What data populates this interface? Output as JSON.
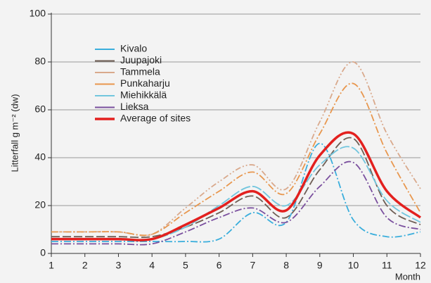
{
  "chart_data": {
    "type": "line",
    "y_label": "Litterfall g m⁻² (dw)",
    "x_label": "Month",
    "x": [
      1,
      2,
      3,
      4,
      5,
      6,
      7,
      8,
      9,
      10,
      11,
      12
    ],
    "xlim": [
      1,
      12
    ],
    "xticks": [
      1,
      2,
      3,
      4,
      5,
      6,
      7,
      8,
      9,
      10,
      11,
      12
    ],
    "ylim": [
      0,
      100
    ],
    "yticks": [
      0,
      20,
      40,
      60,
      80,
      100
    ],
    "grid": true,
    "legend": "upper left",
    "series": [
      {
        "name": "Kivalo",
        "color": "#3aaedc",
        "values": [
          5,
          5,
          5,
          5,
          5,
          6,
          17,
          13,
          46,
          14,
          7,
          9
        ]
      },
      {
        "name": "Juupajoki",
        "color": "#6e5e54",
        "values": [
          7,
          7,
          7,
          7,
          11,
          17,
          24,
          15,
          35,
          48,
          20,
          12
        ]
      },
      {
        "name": "Tammela",
        "color": "#d9a98c",
        "values": [
          9,
          9,
          9,
          8,
          19,
          30,
          37,
          27,
          55,
          80,
          50,
          27
        ]
      },
      {
        "name": "Punkaharju",
        "color": "#e8974e",
        "values": [
          9,
          9,
          9,
          8,
          17,
          26,
          34,
          25,
          50,
          71,
          42,
          17
        ]
      },
      {
        "name": "Miehikkälä",
        "color": "#72c6de",
        "values": [
          6,
          6,
          6,
          6,
          11,
          20,
          28,
          20,
          37,
          44,
          22,
          13
        ]
      },
      {
        "name": "Lieksa",
        "color": "#7a4f9e",
        "values": [
          4,
          4,
          4,
          4,
          9,
          15,
          19,
          13,
          28,
          38,
          15,
          10
        ]
      },
      {
        "name": "Average of sites",
        "color": "#e3201e",
        "values": [
          6,
          6,
          6,
          6,
          12,
          19,
          26,
          18,
          41,
          50,
          26,
          15
        ]
      }
    ]
  }
}
